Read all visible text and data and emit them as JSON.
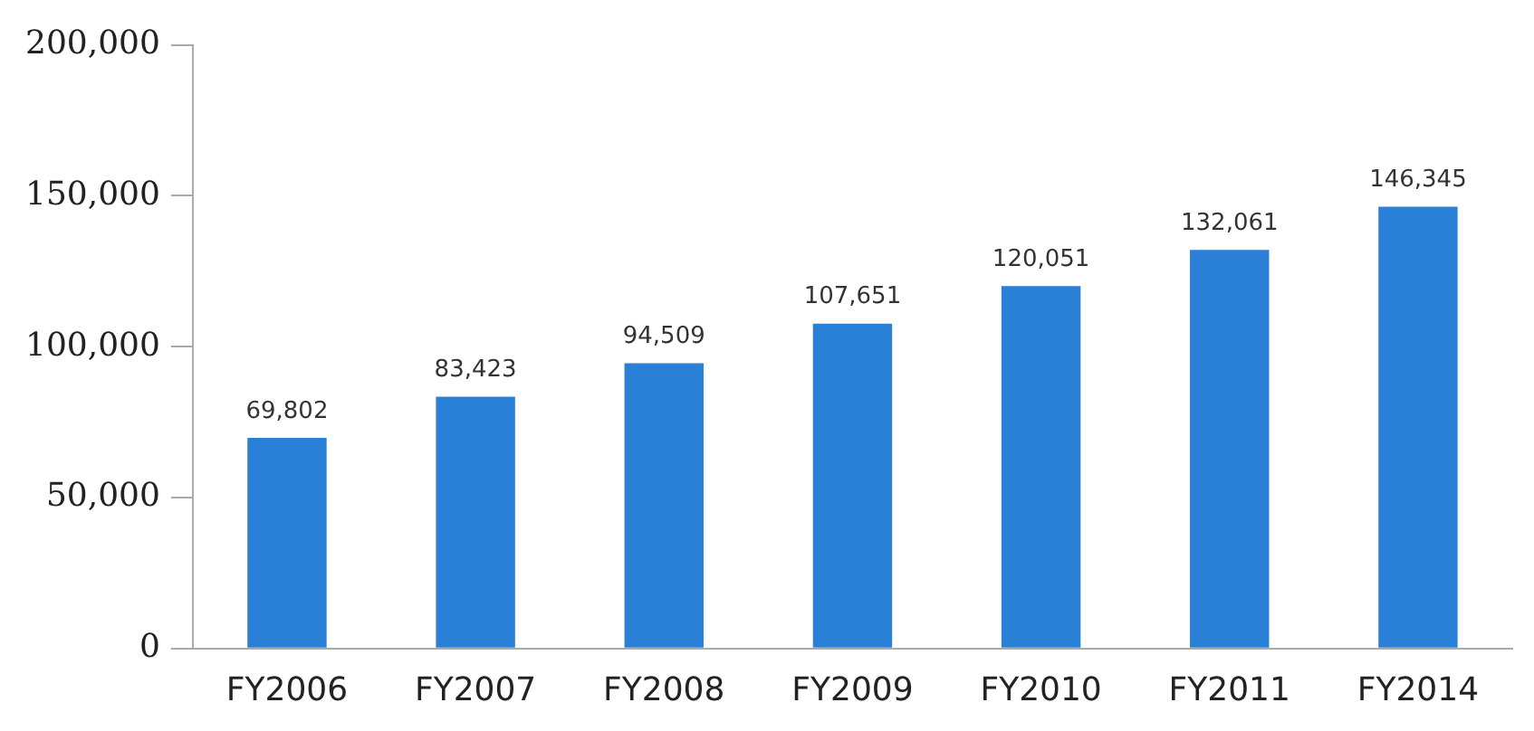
{
  "chart_data": {
    "type": "bar",
    "categories": [
      "FY2006",
      "FY2007",
      "FY2008",
      "FY2009",
      "FY2010",
      "FY2011",
      "FY2014"
    ],
    "values": [
      69802,
      83423,
      94509,
      107651,
      120051,
      132061,
      146345
    ],
    "color": "#2a7fd6",
    "ylim": [
      0,
      200000
    ],
    "yticks": [
      {
        "value": 0,
        "label": "0"
      },
      {
        "value": 50000,
        "label": "50,000"
      },
      {
        "value": 100000,
        "label": "100,000"
      },
      {
        "value": 150000,
        "label": "150,000"
      },
      {
        "value": 200000,
        "label": "200,000"
      }
    ],
    "value_labels": [
      "69,802",
      "83,423",
      "94,509",
      "107,651",
      "120,051",
      "132,061",
      "146,345"
    ],
    "grid": false,
    "legend": false
  }
}
